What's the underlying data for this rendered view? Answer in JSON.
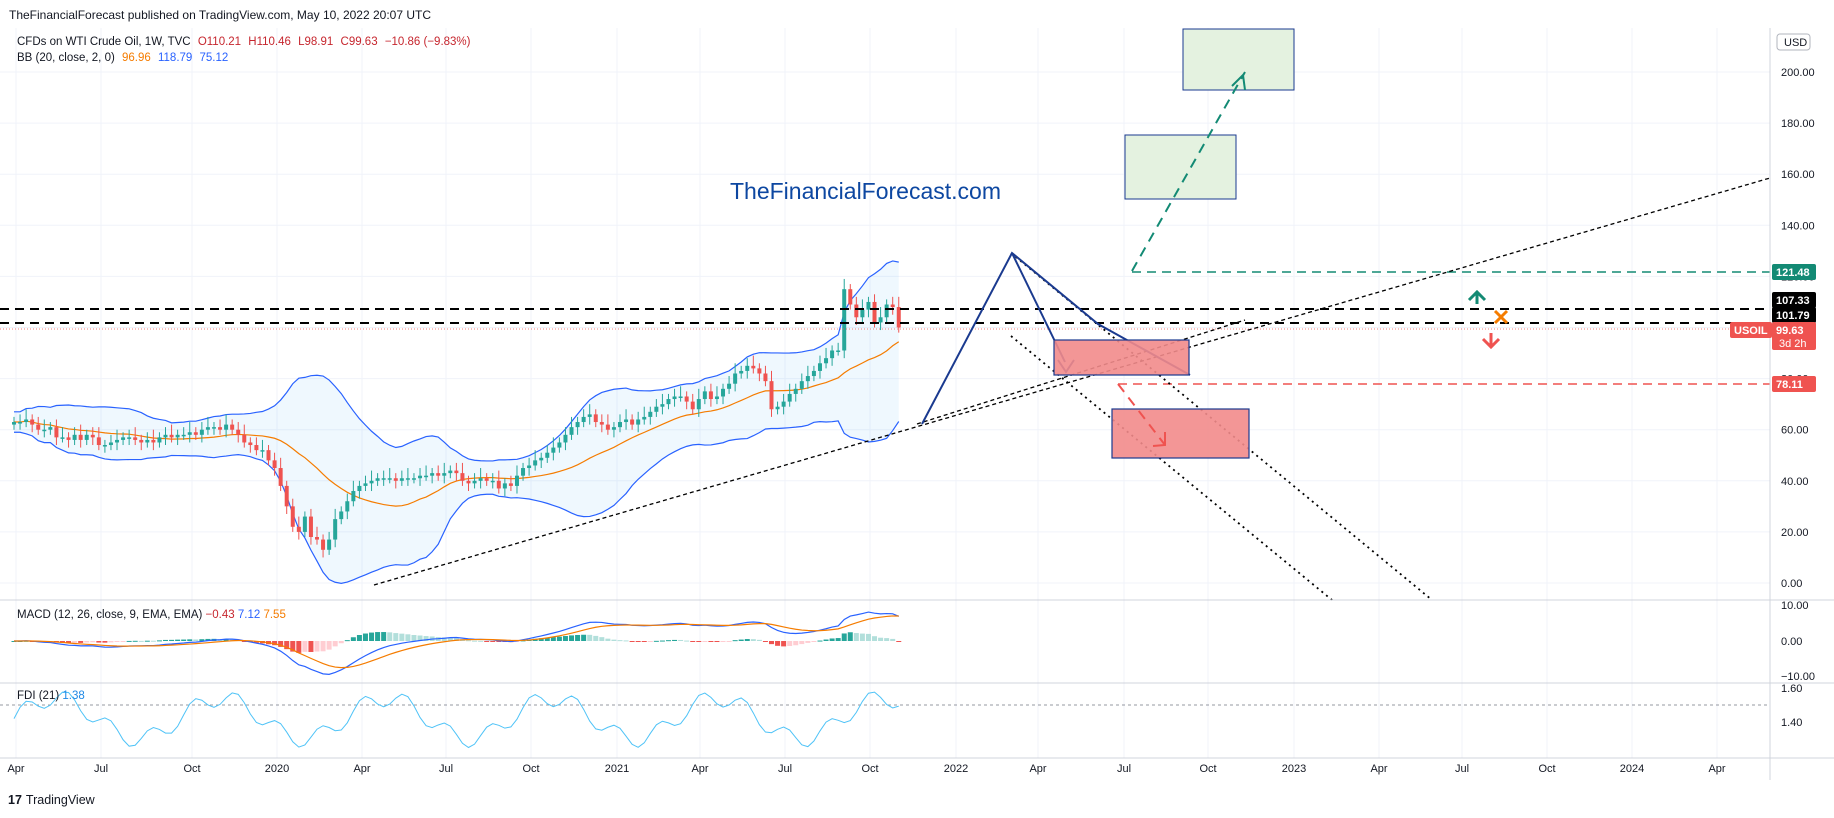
{
  "header": {
    "text": "TheFinancialForecast published on TradingView.com, May 10, 2022 20:07 UTC"
  },
  "legend": {
    "symbol": "CFDs on WTI Crude Oil, 1W, TVC",
    "open": "O110.21",
    "high": "H110.46",
    "low": "L98.91",
    "close": "C99.63",
    "change": "−10.86 (−9.83%)",
    "bb_label": "BB (20, close, 2, 0)",
    "bb_mid": "96.96",
    "bb_up": "118.79",
    "bb_low": "75.12"
  },
  "watermark": "TheFinancialForecast.com",
  "currency_badge": "USD",
  "price_labels": {
    "level_121": "121.48",
    "level_107": "107.33",
    "level_101": "101.79",
    "symbol": "USOIL",
    "last": "99.63",
    "countdown": "3d 2h",
    "level_78": "78.11"
  },
  "macd_legend": {
    "label": "MACD (12, 26, close, 9, EMA, EMA)",
    "hist": "−0.43",
    "macd": "7.12",
    "signal": "7.55"
  },
  "fdi_legend": {
    "label": "FDI (21)",
    "value": "1.38"
  },
  "footer": {
    "logo": "17",
    "text": "TradingView"
  },
  "colors": {
    "up": "#26a69a",
    "down": "#ef5350",
    "bb": "#2962ff",
    "basis": "#f57c00",
    "teal": "#138a74",
    "red_zone": "#f28b8b"
  },
  "chart_data": {
    "type": "candlestick",
    "price_axis": {
      "ticks": [
        "200.00",
        "180.00",
        "160.00",
        "140.00",
        "120.00",
        "100.00",
        "80.00",
        "60.00",
        "40.00",
        "20.00",
        "0.00"
      ]
    },
    "macd_axis": {
      "ticks": [
        "10.00",
        "0.00",
        "−10.00"
      ]
    },
    "fdi_axis": {
      "ticks": [
        "1.60",
        "1.40"
      ]
    },
    "time_axis": {
      "ticks": [
        "Apr",
        "Jul",
        "Oct",
        "2020",
        "Apr",
        "Jul",
        "Oct",
        "2021",
        "Apr",
        "Jul",
        "Oct",
        "2022",
        "Apr",
        "Jul",
        "Oct",
        "2023",
        "Apr",
        "Jul",
        "Oct",
        "2024",
        "Apr"
      ]
    },
    "ylim": [
      -7,
      210
    ],
    "closes": [
      63,
      63,
      64,
      62,
      60,
      60,
      61,
      57,
      57,
      56,
      58,
      56,
      58,
      57,
      54,
      54,
      55,
      56,
      57,
      57,
      56,
      55,
      56,
      55,
      57,
      58,
      57,
      58,
      58,
      59,
      58,
      60,
      61,
      61,
      60,
      62,
      60,
      58,
      55,
      54,
      52,
      52,
      48,
      45,
      38,
      30,
      22,
      20,
      26,
      18,
      17,
      13,
      17,
      25,
      28,
      32,
      36,
      38,
      39,
      40,
      41,
      41,
      41,
      40,
      41,
      41,
      41,
      42,
      42,
      43,
      42,
      43,
      44,
      43,
      40,
      39,
      40,
      41,
      40,
      40,
      37,
      39,
      38,
      42,
      45,
      46,
      48,
      49,
      51,
      53,
      55,
      58,
      61,
      63,
      65,
      66,
      63,
      62,
      60,
      61,
      63,
      64,
      62,
      64,
      65,
      67,
      69,
      70,
      72,
      73,
      73,
      71,
      68,
      72,
      75,
      72,
      73,
      76,
      78,
      82,
      83,
      85,
      84,
      82,
      79,
      68,
      69,
      71,
      74,
      76,
      79,
      81,
      83,
      86,
      88,
      91,
      91,
      115,
      109,
      104,
      107,
      110,
      102,
      104,
      109,
      108,
      100
    ]
  }
}
